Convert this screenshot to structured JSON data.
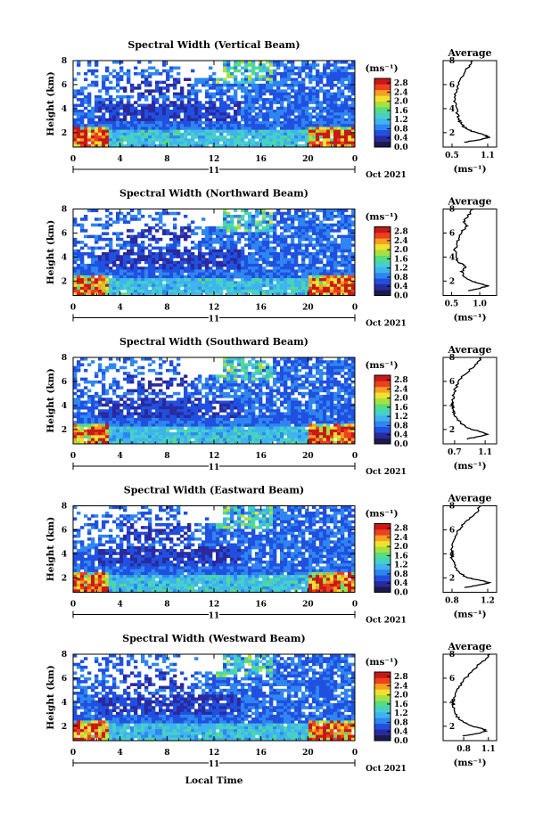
{
  "colors": {
    "scale": [
      "#1a1a50",
      "#2a2a9e",
      "#2050e0",
      "#2f86f0",
      "#3fb3f0",
      "#45d0c8",
      "#55dd80",
      "#a8e040",
      "#f2e030",
      "#f5a020",
      "#ee4020",
      "#c81818"
    ],
    "axis": "#000000",
    "background": "#ffffff"
  },
  "common": {
    "xlabel": "Local Time",
    "date_mid": "11",
    "date_right": "Oct 2021",
    "ylabel": "Height (km)",
    "avg_title": "Average",
    "unit": "(ms⁻¹)",
    "unit_avg": "(ms⁻¹)",
    "x_ticks": [
      "0",
      "4",
      "8",
      "12",
      "16",
      "20",
      "0"
    ],
    "y_ticks": [
      "2",
      "4",
      "6",
      "8"
    ]
  },
  "chart_data": [
    {
      "type": "heatmap",
      "title": "Spectral Width (Vertical Beam)",
      "xlim": [
        0,
        24
      ],
      "ylim": [
        0.8,
        8
      ],
      "colorbar_ticks": [
        "2.8",
        "2.4",
        "2.0",
        "1.6",
        "1.2",
        "0.8",
        "0.4",
        "0.0"
      ],
      "colorbar_range": [
        0,
        3.0
      ],
      "avg": {
        "xticks": [
          "0.5",
          "1.1"
        ],
        "xlim": [
          0.35,
          1.25
        ],
        "profile": [
          [
            1.2,
            0.7
          ],
          [
            1.4,
            0.95
          ],
          [
            1.6,
            1.12
          ],
          [
            1.8,
            1.05
          ],
          [
            2.0,
            0.9
          ],
          [
            2.3,
            0.75
          ],
          [
            2.6,
            0.68
          ],
          [
            3.0,
            0.62
          ],
          [
            3.4,
            0.6
          ],
          [
            4.0,
            0.57
          ],
          [
            4.6,
            0.55
          ],
          [
            5.2,
            0.56
          ],
          [
            5.8,
            0.6
          ],
          [
            6.4,
            0.64
          ],
          [
            7.0,
            0.7
          ],
          [
            7.5,
            0.78
          ],
          [
            8.0,
            0.85
          ]
        ]
      }
    },
    {
      "type": "heatmap",
      "title": "Spectral Width (Northward Beam)",
      "xlim": [
        0,
        24
      ],
      "ylim": [
        0.8,
        8
      ],
      "colorbar_ticks": [
        "2.8",
        "2.4",
        "2.0",
        "1.6",
        "1.2",
        "0.8",
        "0.4",
        "0.0"
      ],
      "colorbar_range": [
        0,
        3.0
      ],
      "avg": {
        "xticks": [
          "0.5",
          "1.0"
        ],
        "xlim": [
          0.35,
          1.3
        ],
        "profile": [
          [
            1.2,
            0.8
          ],
          [
            1.4,
            1.0
          ],
          [
            1.6,
            1.15
          ],
          [
            1.8,
            0.98
          ],
          [
            2.0,
            0.85
          ],
          [
            2.4,
            0.72
          ],
          [
            2.8,
            0.68
          ],
          [
            3.2,
            0.75
          ],
          [
            3.6,
            0.62
          ],
          [
            4.0,
            0.58
          ],
          [
            4.6,
            0.56
          ],
          [
            5.2,
            0.6
          ],
          [
            5.8,
            0.64
          ],
          [
            6.2,
            0.7
          ],
          [
            6.6,
            0.78
          ],
          [
            7.0,
            0.72
          ],
          [
            7.5,
            0.8
          ],
          [
            8.0,
            0.88
          ]
        ]
      }
    },
    {
      "type": "heatmap",
      "title": "Spectral Width (Southward Beam)",
      "xlim": [
        0,
        24
      ],
      "ylim": [
        0.8,
        8
      ],
      "colorbar_ticks": [
        "2.8",
        "2.4",
        "2.0",
        "1.6",
        "1.2",
        "0.8",
        "0.4",
        "0.0"
      ],
      "colorbar_range": [
        0,
        3.0
      ],
      "avg": {
        "xticks": [
          "0.7",
          "1.1"
        ],
        "xlim": [
          0.55,
          1.25
        ],
        "profile": [
          [
            1.2,
            0.85
          ],
          [
            1.4,
            1.02
          ],
          [
            1.6,
            1.12
          ],
          [
            1.8,
            1.05
          ],
          [
            2.0,
            0.92
          ],
          [
            2.4,
            0.8
          ],
          [
            2.8,
            0.74
          ],
          [
            3.2,
            0.7
          ],
          [
            3.6,
            0.68
          ],
          [
            4.0,
            0.67
          ],
          [
            4.6,
            0.68
          ],
          [
            5.2,
            0.7
          ],
          [
            5.8,
            0.74
          ],
          [
            6.4,
            0.8
          ],
          [
            7.0,
            0.9
          ],
          [
            7.5,
            1.0
          ],
          [
            8.0,
            1.05
          ]
        ]
      }
    },
    {
      "type": "heatmap",
      "title": "Spectral Width (Eastward Beam)",
      "xlim": [
        0,
        24
      ],
      "ylim": [
        0.8,
        8
      ],
      "colorbar_ticks": [
        "2.8",
        "2.4",
        "2.0",
        "1.6",
        "1.2",
        "0.8",
        "0.4",
        "0.0"
      ],
      "colorbar_range": [
        0,
        3.0
      ],
      "avg": {
        "xticks": [
          "0.8",
          "1.2"
        ],
        "xlim": [
          0.7,
          1.3
        ],
        "profile": [
          [
            1.2,
            0.95
          ],
          [
            1.4,
            1.1
          ],
          [
            1.6,
            1.22
          ],
          [
            1.8,
            1.12
          ],
          [
            2.0,
            0.98
          ],
          [
            2.4,
            0.88
          ],
          [
            2.8,
            0.84
          ],
          [
            3.2,
            0.82
          ],
          [
            3.6,
            0.8
          ],
          [
            4.0,
            0.79
          ],
          [
            4.6,
            0.8
          ],
          [
            5.2,
            0.83
          ],
          [
            5.8,
            0.86
          ],
          [
            6.4,
            0.92
          ],
          [
            7.0,
            1.0
          ],
          [
            7.5,
            1.08
          ],
          [
            8.0,
            1.12
          ]
        ]
      }
    },
    {
      "type": "heatmap",
      "title": "Spectral Width (Westward Beam)",
      "xlim": [
        0,
        24
      ],
      "ylim": [
        0.8,
        8
      ],
      "colorbar_ticks": [
        "2.8",
        "2.4",
        "2.0",
        "1.6",
        "1.2",
        "0.8",
        "0.4",
        "0.0"
      ],
      "colorbar_range": [
        0,
        3.0
      ],
      "avg": {
        "xticks": [
          "0.8",
          "1.1"
        ],
        "xlim": [
          0.55,
          1.2
        ],
        "profile": [
          [
            1.2,
            0.8
          ],
          [
            1.4,
            0.98
          ],
          [
            1.6,
            1.08
          ],
          [
            1.8,
            1.02
          ],
          [
            2.0,
            0.9
          ],
          [
            2.4,
            0.78
          ],
          [
            2.8,
            0.72
          ],
          [
            3.2,
            0.7
          ],
          [
            3.6,
            0.68
          ],
          [
            4.0,
            0.67
          ],
          [
            4.6,
            0.7
          ],
          [
            5.2,
            0.74
          ],
          [
            5.8,
            0.8
          ],
          [
            6.4,
            0.88
          ],
          [
            7.0,
            0.96
          ],
          [
            7.5,
            1.06
          ],
          [
            8.0,
            1.12
          ]
        ]
      }
    }
  ]
}
